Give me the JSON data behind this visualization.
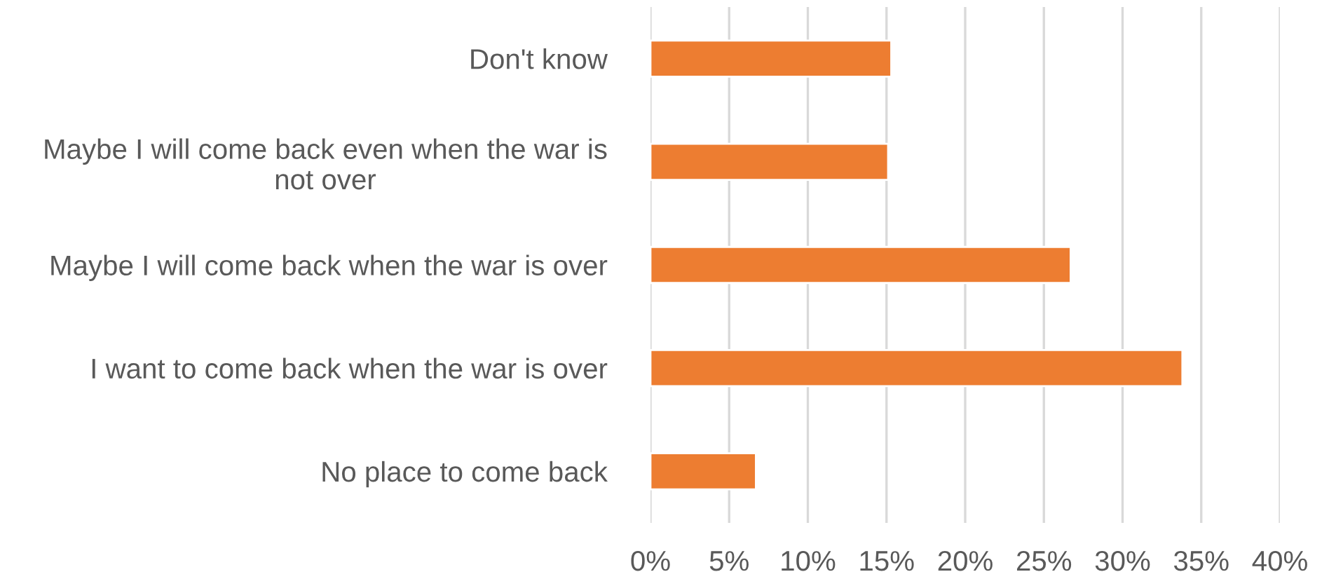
{
  "chart_data": {
    "type": "bar",
    "orientation": "horizontal",
    "categories": [
      "Don't know",
      "Maybe I will come back even when the war is not over",
      "Maybe I will come back when the war is over",
      "I want to come back when the war is over",
      "No place to come back"
    ],
    "values": [
      15.3,
      15.1,
      26.7,
      33.8,
      6.7
    ],
    "color": "#ed7d31",
    "xlim": [
      0,
      40
    ],
    "xticks": [
      {
        "value": 0,
        "label": "0%"
      },
      {
        "value": 5,
        "label": "5%"
      },
      {
        "value": 10,
        "label": "10%"
      },
      {
        "value": 15,
        "label": "15%"
      },
      {
        "value": 20,
        "label": "20%"
      },
      {
        "value": 25,
        "label": "25%"
      },
      {
        "value": 30,
        "label": "30%"
      },
      {
        "value": 35,
        "label": "35%"
      },
      {
        "value": 40,
        "label": "40%"
      }
    ],
    "grid": "x"
  }
}
